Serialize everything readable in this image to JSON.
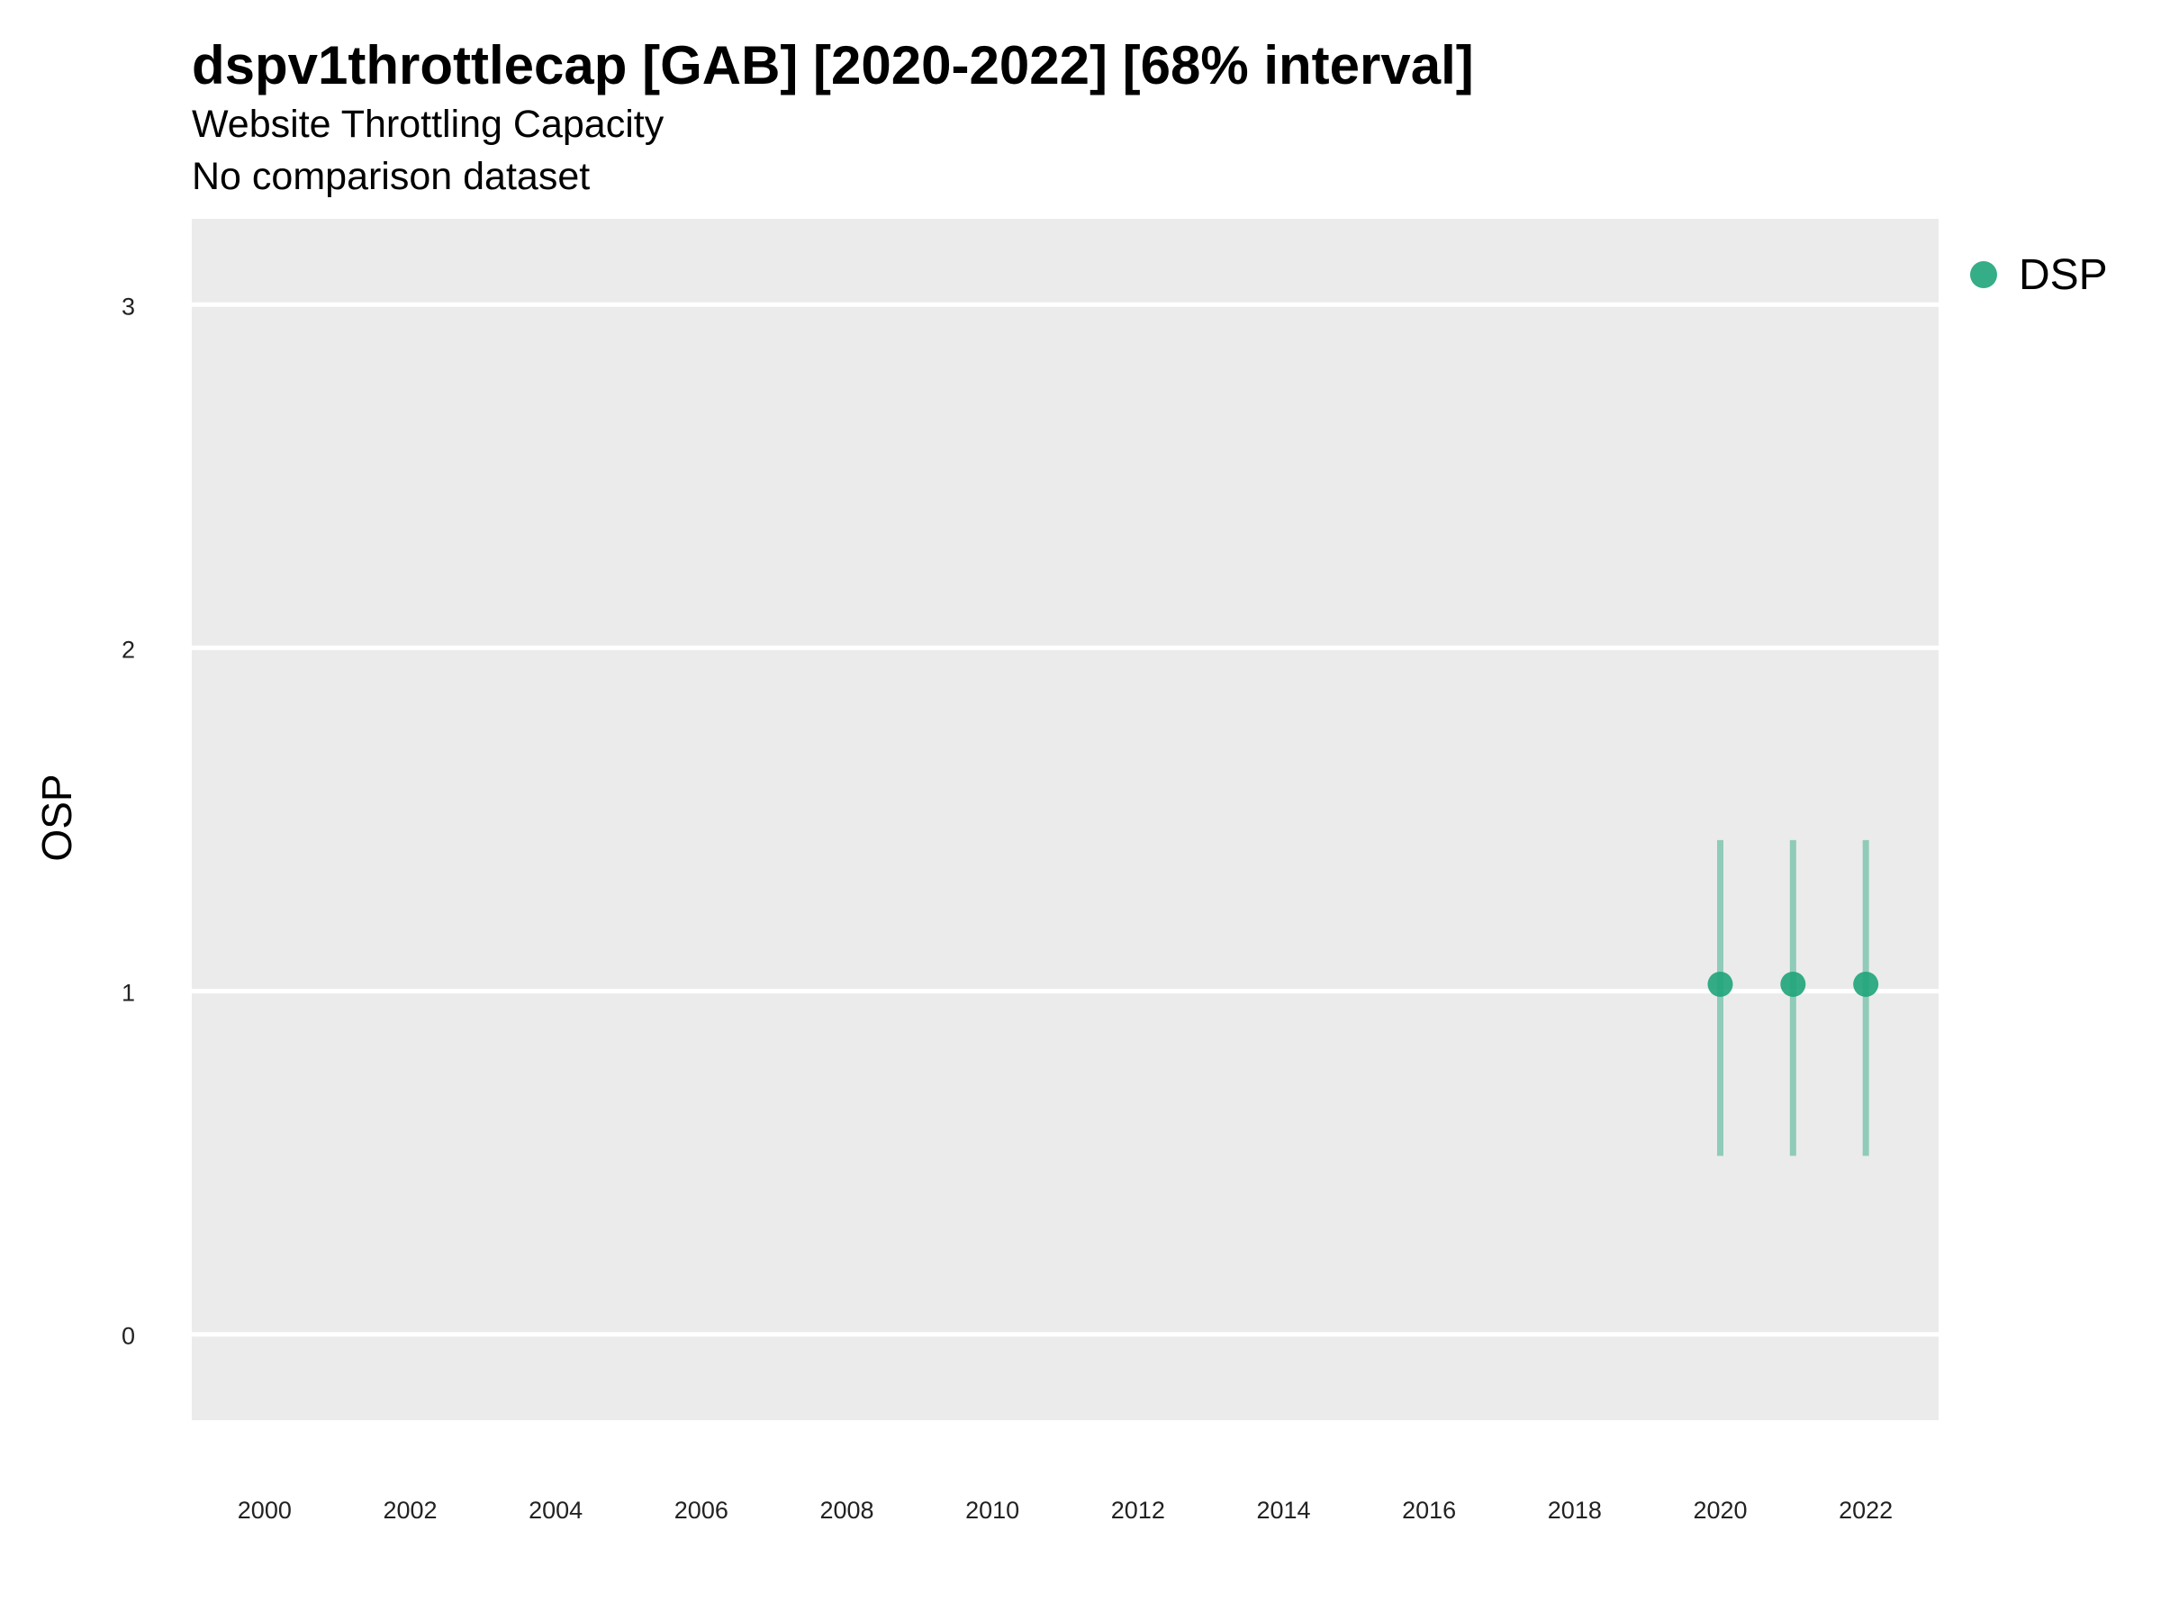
{
  "chart_data": {
    "type": "scatter",
    "title": "dspv1throttlecap [GAB] [2020-2022] [68% interval]",
    "subtitle": [
      "Website Throttling Capacity",
      "No comparison dataset"
    ],
    "xlabel": "",
    "ylabel": "OSP",
    "xlim": [
      1999,
      2023
    ],
    "ylim": [
      -0.25,
      3.25
    ],
    "x_ticks": [
      2000,
      2002,
      2004,
      2006,
      2008,
      2010,
      2012,
      2014,
      2016,
      2018,
      2020,
      2022
    ],
    "y_ticks": [
      0,
      1,
      2,
      3
    ],
    "grid": true,
    "legend_position": "right",
    "series": [
      {
        "name": "DSP",
        "color": "#1fa47a",
        "points": [
          {
            "x": 2020,
            "y": 1.02,
            "lower": 0.52,
            "upper": 1.44
          },
          {
            "x": 2021,
            "y": 1.02,
            "lower": 0.52,
            "upper": 1.44
          },
          {
            "x": 2022,
            "y": 1.02,
            "lower": 0.52,
            "upper": 1.44
          }
        ]
      }
    ],
    "colors": {
      "panel": "#ebebeb",
      "grid": "#ffffff"
    }
  }
}
